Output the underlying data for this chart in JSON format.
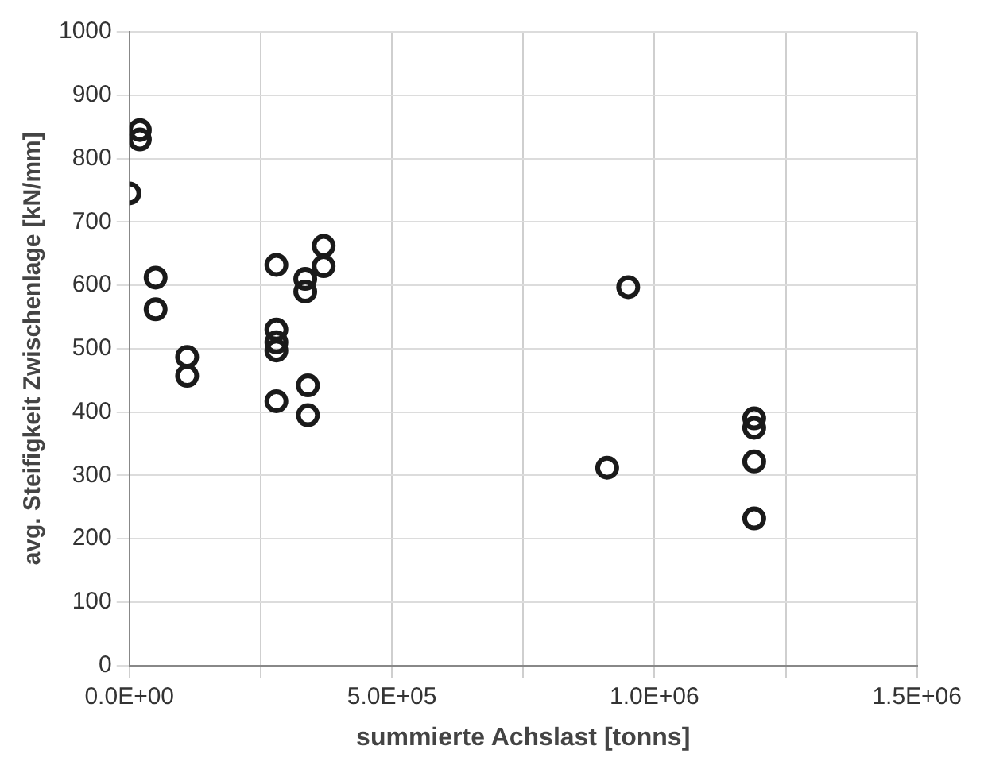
{
  "chart_data": {
    "type": "scatter",
    "xlabel": "summierte Achslast [tonns]",
    "ylabel": "avg. Steifigkeit Zwischenlage [kN/mm]",
    "x": [
      0,
      20000,
      20000,
      50000,
      50000,
      110000,
      110000,
      280000,
      280000,
      280000,
      280000,
      280000,
      335000,
      335000,
      370000,
      370000,
      340000,
      340000,
      910000,
      950000,
      1190000,
      1190000,
      1190000,
      1190000
    ],
    "values": [
      745,
      845,
      830,
      612,
      562,
      487,
      457,
      632,
      530,
      510,
      497,
      417,
      610,
      590,
      662,
      630,
      442,
      395,
      312,
      597,
      390,
      375,
      322,
      232
    ],
    "color": "#1a1a1a",
    "marker": "circle",
    "grid": true,
    "legend": false,
    "xlim": [
      0,
      1500000
    ],
    "xticks": [
      {
        "value": 0,
        "label": "0.0E+00"
      },
      {
        "value": 250000,
        "label": null
      },
      {
        "value": 500000,
        "label": "5.0E+05"
      },
      {
        "value": 750000,
        "label": null
      },
      {
        "value": 1000000,
        "label": "1.0E+06"
      },
      {
        "value": 1250000,
        "label": null
      },
      {
        "value": 1500000,
        "label": "1.5E+06"
      }
    ],
    "ylim": [
      0,
      1000
    ],
    "yticks": [
      0,
      100,
      200,
      300,
      400,
      500,
      600,
      700,
      800,
      900,
      1000
    ]
  }
}
